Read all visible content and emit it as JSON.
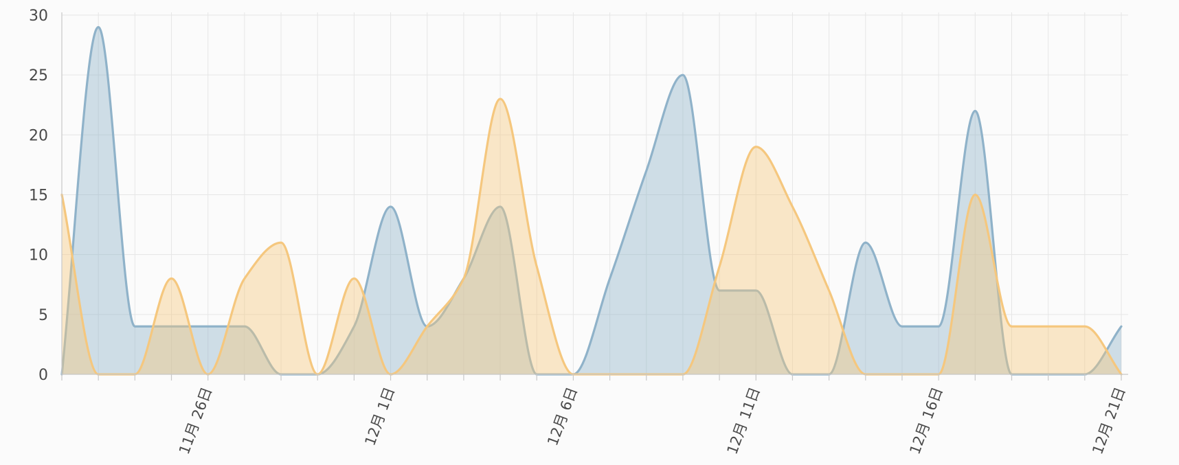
{
  "chart_data": {
    "type": "area",
    "x": [
      "11月22日",
      "11月23日",
      "11月24日",
      "11月25日",
      "11月26日",
      "11月27日",
      "11月28日",
      "11月29日",
      "11月30日",
      "12月1日",
      "12月2日",
      "12月3日",
      "12月4日",
      "12月5日",
      "12月6日",
      "12月7日",
      "12月8日",
      "12月9日",
      "12月10日",
      "12月11日",
      "12月12日",
      "12月13日",
      "12月14日",
      "12月15日",
      "12月16日",
      "12月17日",
      "12月18日",
      "12月19日",
      "12月20日",
      "12月21日"
    ],
    "x_tick_labels": [
      "11月 26日",
      "12月 1日",
      "12月 6日",
      "12月 11日",
      "12月 16日",
      "12月 21日"
    ],
    "x_tick_label_positions": [
      "11月26日",
      "12月1日",
      "12月6日",
      "12月11日",
      "12月16日",
      "12月21日"
    ],
    "y_ticks": [
      0,
      5,
      10,
      15,
      20,
      25,
      30
    ],
    "ylim": [
      0,
      30
    ],
    "grid": true,
    "title": "",
    "xlabel": "",
    "ylabel": "",
    "series": [
      {
        "color": "#8fb2c9",
        "fill": "rgba(143,178,201,0.42)",
        "values": [
          0,
          29,
          4,
          4,
          4,
          4,
          0,
          0,
          4,
          14,
          4,
          8,
          14,
          0,
          0,
          8,
          17,
          25,
          7,
          7,
          0,
          0,
          11,
          4,
          4,
          22,
          0,
          0,
          0,
          4
        ]
      },
      {
        "color": "#f5c77e",
        "fill": "rgba(245,199,126,0.42)",
        "values": [
          15,
          0,
          0,
          8,
          0,
          8,
          11,
          0,
          8,
          0,
          4,
          8,
          23,
          9,
          0,
          0,
          0,
          0,
          9,
          19,
          14,
          7,
          0,
          0,
          0,
          15,
          4,
          4,
          4,
          0
        ]
      }
    ]
  }
}
